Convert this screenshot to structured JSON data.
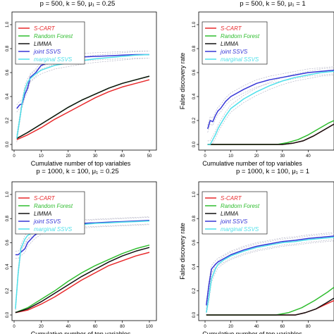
{
  "chart_data": [
    {
      "type": "line",
      "title": "p = 500, k = 50, μ₁ = 0.25",
      "xlabel": "Cumulative number of top variables",
      "ylabel": "",
      "xlim": [
        0,
        50
      ],
      "ylim": [
        0,
        1
      ],
      "xticks": [
        "0",
        "10",
        "20",
        "30",
        "40",
        "50"
      ],
      "yticks": [
        "0.0",
        "0.2",
        "0.4",
        "0.6",
        "0.8",
        "1.0"
      ],
      "legend": "top-left",
      "series": [
        {
          "name": "S-CART",
          "color": "#e8292b",
          "x": [
            1,
            5,
            10,
            15,
            20,
            25,
            30,
            35,
            40,
            45,
            50
          ],
          "y": [
            0.04,
            0.08,
            0.14,
            0.21,
            0.27,
            0.33,
            0.39,
            0.44,
            0.48,
            0.51,
            0.54
          ]
        },
        {
          "name": "Random Forest",
          "color": "#2fbd2f",
          "x": [
            1,
            5,
            10,
            15,
            20,
            25,
            30,
            35,
            40,
            45,
            50
          ],
          "y": [
            0.05,
            0.1,
            0.17,
            0.24,
            0.31,
            0.37,
            0.42,
            0.47,
            0.51,
            0.54,
            0.57
          ]
        },
        {
          "name": "LIMMA",
          "color": "#111111",
          "x": [
            1,
            5,
            10,
            15,
            20,
            25,
            30,
            35,
            40,
            45,
            50
          ],
          "y": [
            0.05,
            0.1,
            0.17,
            0.24,
            0.31,
            0.37,
            0.42,
            0.47,
            0.51,
            0.54,
            0.57
          ]
        },
        {
          "name": "joint SSVS",
          "color": "#3535d6",
          "x": [
            1,
            2,
            3,
            4,
            5,
            6,
            8,
            10,
            15,
            20,
            25,
            30,
            35,
            40,
            45,
            50
          ],
          "y": [
            0.3,
            0.33,
            0.34,
            0.42,
            0.47,
            0.56,
            0.6,
            0.66,
            0.7,
            0.72,
            0.73,
            0.735,
            0.74,
            0.745,
            0.75,
            0.75
          ]
        },
        {
          "name": "marginal SSVS",
          "color": "#4fe0ea",
          "x": [
            1,
            2,
            3,
            4,
            5,
            6,
            8,
            10,
            15,
            20,
            25,
            30,
            35,
            40,
            45,
            50
          ],
          "y": [
            0.05,
            0.2,
            0.35,
            0.46,
            0.52,
            0.55,
            0.59,
            0.62,
            0.66,
            0.68,
            0.7,
            0.715,
            0.725,
            0.735,
            0.745,
            0.75
          ]
        }
      ]
    },
    {
      "type": "line",
      "title": "p = 500, k = 50, μ₁ = 1",
      "xlabel": "Cumulative number of top variables",
      "ylabel": "False discovery rate",
      "xlim": [
        0,
        50
      ],
      "ylim": [
        0,
        1
      ],
      "xticks": [
        "0",
        "10",
        "20",
        "30",
        "40"
      ],
      "yticks": [
        "0.0",
        "0.2",
        "0.4",
        "0.6",
        "0.8",
        "1.0"
      ],
      "legend": "top-left",
      "series": [
        {
          "name": "S-CART",
          "color": "#e8292b",
          "x": [
            1,
            30,
            34,
            38,
            42,
            46,
            50
          ],
          "y": [
            0.0,
            0.0,
            0.01,
            0.03,
            0.07,
            0.12,
            0.17
          ]
        },
        {
          "name": "Random Forest",
          "color": "#2fbd2f",
          "x": [
            1,
            28,
            32,
            36,
            40,
            44,
            48,
            50
          ],
          "y": [
            0.0,
            0.0,
            0.015,
            0.04,
            0.08,
            0.13,
            0.18,
            0.2
          ]
        },
        {
          "name": "LIMMA",
          "color": "#111111",
          "x": [
            1,
            30,
            34,
            38,
            42,
            46,
            50
          ],
          "y": [
            0.0,
            0.0,
            0.01,
            0.03,
            0.07,
            0.12,
            0.17
          ]
        },
        {
          "name": "joint SSVS",
          "color": "#3535d6",
          "x": [
            1,
            2,
            3,
            4,
            5,
            6,
            8,
            10,
            15,
            20,
            25,
            30,
            35,
            40,
            45,
            50
          ],
          "y": [
            0.13,
            0.2,
            0.19,
            0.24,
            0.28,
            0.3,
            0.36,
            0.4,
            0.46,
            0.51,
            0.54,
            0.56,
            0.58,
            0.6,
            0.61,
            0.62
          ]
        },
        {
          "name": "marginal SSVS",
          "color": "#4fe0ea",
          "x": [
            1,
            2,
            3,
            4,
            5,
            6,
            8,
            10,
            15,
            20,
            25,
            30,
            35,
            40,
            45,
            50
          ],
          "y": [
            0.0,
            0.0,
            0.04,
            0.08,
            0.13,
            0.17,
            0.24,
            0.3,
            0.38,
            0.44,
            0.49,
            0.53,
            0.56,
            0.58,
            0.6,
            0.61
          ]
        }
      ]
    },
    {
      "type": "line",
      "title": "p = 1000, k = 100, μ₁ = 0.25",
      "xlabel": "Cumulative number of top variables",
      "ylabel": "",
      "xlim": [
        0,
        100
      ],
      "ylim": [
        0,
        1
      ],
      "xticks": [
        "0",
        "20",
        "40",
        "60",
        "80",
        "100"
      ],
      "yticks": [
        "0.0",
        "0.2",
        "0.4",
        "0.6",
        "0.8",
        "1.0"
      ],
      "legend": "top-left",
      "series": [
        {
          "name": "S-CART",
          "color": "#e8292b",
          "x": [
            1,
            10,
            20,
            30,
            40,
            50,
            60,
            70,
            80,
            90,
            100
          ],
          "y": [
            0.02,
            0.04,
            0.09,
            0.15,
            0.22,
            0.29,
            0.35,
            0.41,
            0.45,
            0.49,
            0.52
          ]
        },
        {
          "name": "Random Forest",
          "color": "#2fbd2f",
          "x": [
            1,
            10,
            20,
            30,
            40,
            50,
            60,
            70,
            80,
            90,
            100
          ],
          "y": [
            0.02,
            0.06,
            0.13,
            0.2,
            0.28,
            0.35,
            0.41,
            0.46,
            0.51,
            0.55,
            0.58
          ]
        },
        {
          "name": "LIMMA",
          "color": "#111111",
          "x": [
            1,
            10,
            20,
            30,
            40,
            50,
            60,
            70,
            80,
            90,
            100
          ],
          "y": [
            0.02,
            0.05,
            0.11,
            0.18,
            0.25,
            0.32,
            0.38,
            0.44,
            0.49,
            0.53,
            0.56
          ]
        },
        {
          "name": "joint SSVS",
          "color": "#3535d6",
          "x": [
            1,
            3,
            5,
            8,
            10,
            15,
            20,
            30,
            40,
            50,
            60,
            70,
            80,
            90,
            100
          ],
          "y": [
            0.5,
            0.5,
            0.52,
            0.55,
            0.6,
            0.66,
            0.7,
            0.73,
            0.75,
            0.76,
            0.765,
            0.77,
            0.775,
            0.78,
            0.785
          ]
        },
        {
          "name": "marginal SSVS",
          "color": "#4fe0ea",
          "x": [
            1,
            3,
            5,
            8,
            10,
            15,
            20,
            30,
            40,
            50,
            60,
            70,
            80,
            90,
            100
          ],
          "y": [
            0.05,
            0.35,
            0.55,
            0.63,
            0.66,
            0.69,
            0.71,
            0.73,
            0.74,
            0.75,
            0.76,
            0.765,
            0.77,
            0.775,
            0.78
          ]
        }
      ]
    },
    {
      "type": "line",
      "title": "p = 1000, k = 100, μ₁ = 1",
      "xlabel": "Cumulative number of top variables",
      "ylabel": "False discovery rate",
      "xlim": [
        0,
        100
      ],
      "ylim": [
        0,
        1
      ],
      "xticks": [
        "0",
        "20",
        "40",
        "60",
        "80"
      ],
      "yticks": [
        "0.0",
        "0.2",
        "0.4",
        "0.6",
        "0.8",
        "1.0"
      ],
      "legend": "top-left",
      "series": [
        {
          "name": "S-CART",
          "color": "#e8292b",
          "x": [
            1,
            70,
            78,
            86,
            94,
            100
          ],
          "y": [
            0.0,
            0.0,
            0.02,
            0.05,
            0.09,
            0.12
          ]
        },
        {
          "name": "Random Forest",
          "color": "#2fbd2f",
          "x": [
            1,
            55,
            65,
            75,
            85,
            95,
            100
          ],
          "y": [
            0.0,
            0.0,
            0.02,
            0.06,
            0.12,
            0.19,
            0.23
          ]
        },
        {
          "name": "LIMMA",
          "color": "#111111",
          "x": [
            1,
            70,
            78,
            86,
            94,
            100
          ],
          "y": [
            0.0,
            0.0,
            0.02,
            0.05,
            0.1,
            0.14
          ]
        },
        {
          "name": "joint SSVS",
          "color": "#3535d6",
          "x": [
            1,
            3,
            5,
            8,
            10,
            15,
            20,
            30,
            40,
            50,
            60,
            70,
            80,
            90,
            100
          ],
          "y": [
            0.08,
            0.25,
            0.38,
            0.42,
            0.44,
            0.47,
            0.5,
            0.54,
            0.57,
            0.59,
            0.61,
            0.62,
            0.635,
            0.645,
            0.655
          ]
        },
        {
          "name": "marginal SSVS",
          "color": "#4fe0ea",
          "x": [
            1,
            3,
            5,
            8,
            10,
            15,
            20,
            30,
            40,
            50,
            60,
            70,
            80,
            90,
            100
          ],
          "y": [
            0.02,
            0.15,
            0.3,
            0.38,
            0.42,
            0.46,
            0.49,
            0.53,
            0.56,
            0.58,
            0.6,
            0.61,
            0.625,
            0.635,
            0.645
          ]
        }
      ]
    }
  ]
}
